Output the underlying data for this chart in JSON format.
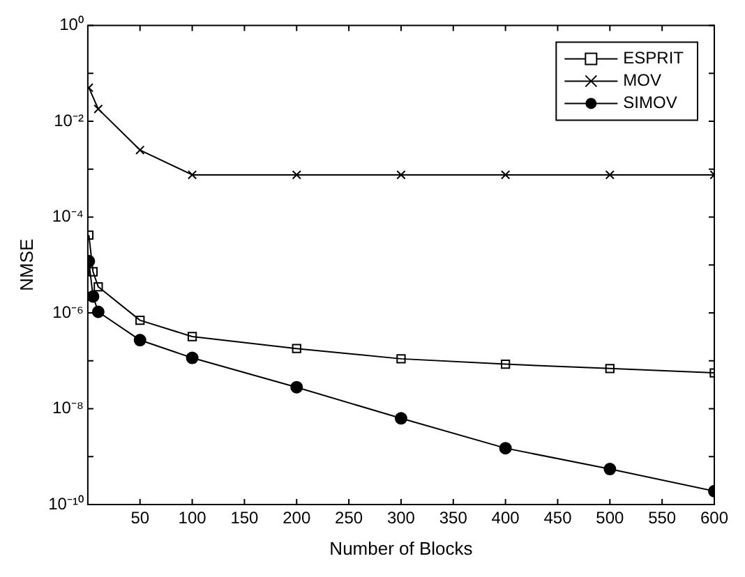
{
  "chart_data": {
    "type": "line",
    "xlabel": "Number of Blocks",
    "ylabel": "NMSE",
    "log": "y",
    "grid": false,
    "legend": "top right",
    "xlim": [
      0,
      600
    ],
    "xticks": [
      50,
      100,
      150,
      200,
      250,
      300,
      350,
      400,
      450,
      500,
      550,
      600
    ],
    "ylim": [
      1e-10,
      1
    ],
    "yticks": [
      {
        "value": 1,
        "label": "10⁰"
      },
      {
        "value": 0.1,
        "label": null
      },
      {
        "value": 0.01,
        "label": "10⁻²"
      },
      {
        "value": 0.001,
        "label": null
      },
      {
        "value": 0.0001,
        "label": "10⁻⁴"
      },
      {
        "value": 1e-05,
        "label": null
      },
      {
        "value": 1e-06,
        "label": "10⁻⁶"
      },
      {
        "value": 1e-07,
        "label": null
      },
      {
        "value": 1e-08,
        "label": "10⁻⁸"
      },
      {
        "value": 1e-09,
        "label": null
      },
      {
        "value": 1e-10,
        "label": "10⁻¹⁰"
      }
    ],
    "x": [
      1,
      5,
      10,
      50,
      100,
      200,
      300,
      400,
      500,
      600
    ],
    "series": [
      {
        "name": "ESPRIT",
        "color": "#000000",
        "marker": "square",
        "values": [
          4.2e-05,
          7.2e-06,
          3.5e-06,
          7e-07,
          3.2e-07,
          1.8e-07,
          1.1e-07,
          8.5e-08,
          6.9e-08,
          5.6e-08
        ]
      },
      {
        "name": "MOV",
        "color": "#000000",
        "marker": "cross",
        "values": [
          0.05,
          null,
          0.018,
          0.0025,
          0.00076,
          0.00076,
          0.00076,
          0.00076,
          0.00076,
          0.00076
        ]
      },
      {
        "name": "SIMOV",
        "color": "#000000",
        "marker": "circle",
        "values": [
          1.2e-05,
          2.2e-06,
          1.05e-06,
          2.7e-07,
          1.15e-07,
          2.8e-08,
          6.3e-09,
          1.5e-09,
          5.5e-10,
          1.9e-10
        ]
      }
    ]
  }
}
